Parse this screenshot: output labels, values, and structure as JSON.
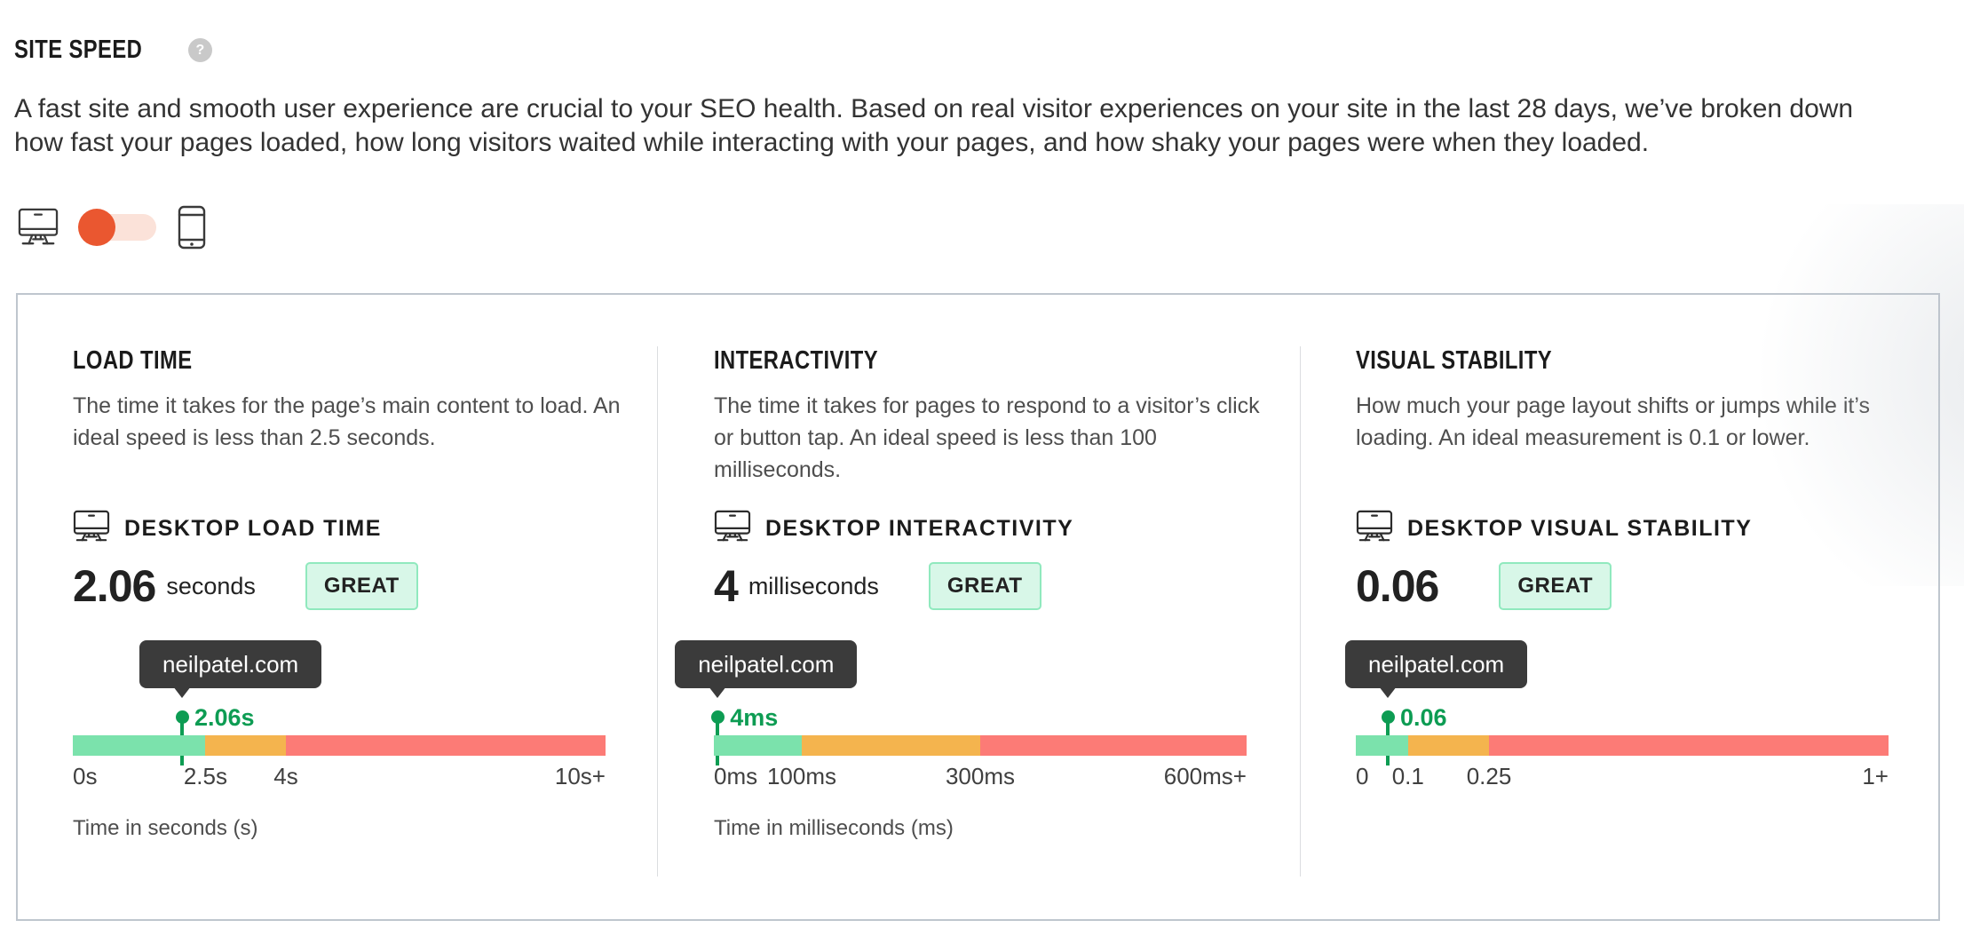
{
  "page": {
    "title": "SITE SPEED",
    "help_icon": "?",
    "description_lines": [
      "A fast site and smooth user experience are crucial to your SEO health. Based on real visitor experiences on your site in the last 28 days, we’ve broken down",
      "how fast your pages loaded, how long visitors waited while interacting with your pages, and how shaky your pages were when they loaded."
    ]
  },
  "device_toggle": {
    "selected": "desktop",
    "options": [
      "desktop",
      "mobile"
    ]
  },
  "colors": {
    "seg_green": "#7be2ac",
    "seg_orange": "#f4b44e",
    "seg_red": "#fc7b76",
    "marker_green": "#0d9c53",
    "badge_bg": "#d8f7e8",
    "badge_border": "#90e9be",
    "tooltip_bg": "#3b3b3b",
    "toggle_knob": "#ea5730",
    "toggle_track": "#fbe2d9",
    "help_bg": "#c9c9c9"
  },
  "cards": [
    {
      "title": "LOAD TIME",
      "description_lines": [
        "The time it takes for the page’s main content to load. An",
        "ideal speed is less than 2.5 seconds.",
        ""
      ],
      "metric_label": "DESKTOP LOAD TIME",
      "value": "2.06",
      "unit": "seconds",
      "badge": "GREAT",
      "tooltip": "neilpatel.com",
      "gauge": {
        "marker_label": "2.06s",
        "marker_pct": 20.5,
        "segments": [
          {
            "color": "green",
            "width_pct": 24.9,
            "range": "0s-2.5s"
          },
          {
            "color": "orange",
            "width_pct": 15.1,
            "range": "2.5s-4s"
          },
          {
            "color": "red",
            "width_pct": 60.0,
            "range": "4s-10s+"
          }
        ],
        "axis_labels": [
          {
            "text": "0s",
            "pct": 0,
            "align": "left"
          },
          {
            "text": "2.5s",
            "pct": 24.9,
            "align": "center"
          },
          {
            "text": "4s",
            "pct": 40,
            "align": "center"
          },
          {
            "text": "10s+",
            "pct": 100,
            "align": "right"
          }
        ]
      },
      "footnote": "Time in seconds (s)"
    },
    {
      "title": "INTERACTIVITY",
      "description_lines": [
        "The time it takes for pages to respond to a visitor’s click",
        "or button tap. An ideal speed is less than 100",
        "milliseconds."
      ],
      "metric_label": "DESKTOP INTERACTIVITY",
      "value": "4",
      "unit": "milliseconds",
      "badge": "GREAT",
      "tooltip": "neilpatel.com",
      "gauge": {
        "marker_label": "4ms",
        "marker_pct": 0.7,
        "segments": [
          {
            "color": "green",
            "width_pct": 16.5,
            "range": "0ms-100ms"
          },
          {
            "color": "orange",
            "width_pct": 33.5,
            "range": "100ms-300ms"
          },
          {
            "color": "red",
            "width_pct": 50.0,
            "range": "300ms-600ms+"
          }
        ],
        "axis_labels": [
          {
            "text": "0ms",
            "pct": 0,
            "align": "left"
          },
          {
            "text": "100ms",
            "pct": 16.5,
            "align": "center"
          },
          {
            "text": "300ms",
            "pct": 50,
            "align": "center"
          },
          {
            "text": "600ms+",
            "pct": 100,
            "align": "right"
          }
        ]
      },
      "footnote": "Time in milliseconds (ms)"
    },
    {
      "title": "VISUAL STABILITY",
      "description_lines": [
        "How much your page layout shifts or jumps while it’s",
        "loading. An ideal measurement is 0.1 or lower.",
        ""
      ],
      "metric_label": "DESKTOP VISUAL STABILITY",
      "value": "0.06",
      "unit": "",
      "badge": "GREAT",
      "tooltip": "neilpatel.com",
      "gauge": {
        "marker_label": "0.06",
        "marker_pct": 6.0,
        "segments": [
          {
            "color": "green",
            "width_pct": 9.8,
            "range": "0-0.1"
          },
          {
            "color": "orange",
            "width_pct": 15.2,
            "range": "0.1-0.25"
          },
          {
            "color": "red",
            "width_pct": 75.0,
            "range": "0.25-1+"
          }
        ],
        "axis_labels": [
          {
            "text": "0",
            "pct": 0,
            "align": "left"
          },
          {
            "text": "0.1",
            "pct": 9.8,
            "align": "center"
          },
          {
            "text": "0.25",
            "pct": 25,
            "align": "center"
          },
          {
            "text": "1+",
            "pct": 100,
            "align": "right"
          }
        ]
      },
      "footnote": ""
    }
  ]
}
